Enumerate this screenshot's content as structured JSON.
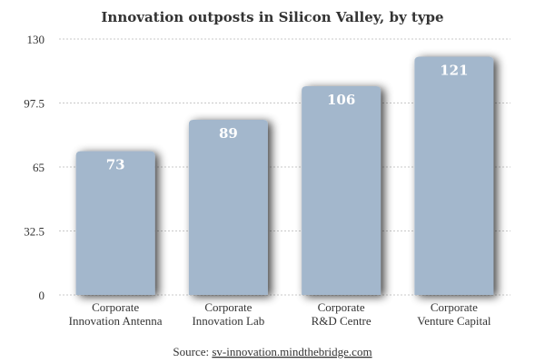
{
  "chart_data": {
    "type": "bar",
    "title": "Innovation outposts in Silicon Valley, by type",
    "categories": [
      [
        "Corporate",
        "Innovation Antenna"
      ],
      [
        "Corporate",
        "Innovation Lab"
      ],
      [
        "Corporate",
        "R&D Centre"
      ],
      [
        "Corporate",
        "Venture Capital"
      ]
    ],
    "values": [
      73,
      89,
      106,
      121
    ],
    "data_labels": [
      "73",
      "89",
      "106",
      "121"
    ],
    "ylim": [
      0,
      130
    ],
    "yticks": [
      0,
      32.5,
      65,
      97.5,
      130
    ],
    "ytick_labels": [
      "0",
      "32.5",
      "65",
      "97.5",
      "130"
    ],
    "xlabel": "",
    "ylabel": "",
    "grid": true,
    "bar_color": "#a3b7cc",
    "grid_color": "#c8c8c8",
    "source_prefix": "Source: ",
    "source_link": "sv-innovation.mindthebridge.com"
  }
}
